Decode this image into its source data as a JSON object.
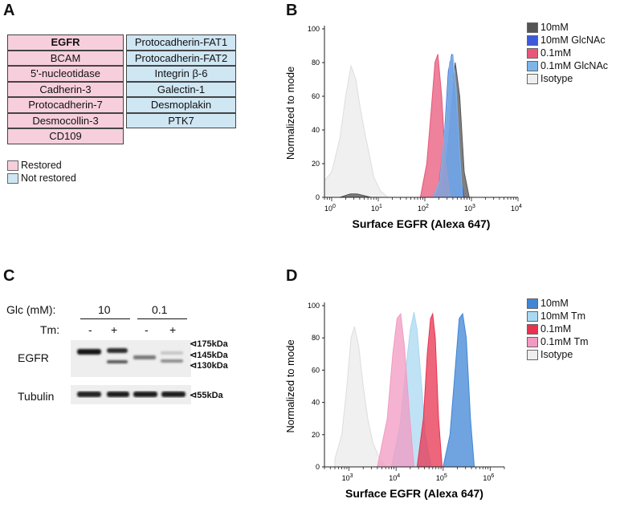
{
  "panels": {
    "a": {
      "letter": "A",
      "restored_list": [
        "EGFR",
        "BCAM",
        "5'-nucleotidase",
        "Cadherin-3",
        "Protocadherin-7",
        "Desmocollin-3",
        "CD109"
      ],
      "not_restored_list": [
        "Protocadherin-FAT1",
        "Protocadherin-FAT2",
        "Integrin β-6",
        "Galectin-1",
        "Desmoplakin",
        "PTK7"
      ],
      "legend": {
        "restored": "Restored",
        "not_restored": "Not restored"
      },
      "colors": {
        "restored": "#f7cfdc",
        "not_restored": "#cfe6f3"
      }
    },
    "b": {
      "letter": "B"
    },
    "c": {
      "letter": "C",
      "glc_label": "Glc (mM):",
      "tm_label": "Tm:",
      "glc_values": [
        "10",
        "0.1"
      ],
      "tm_values": [
        "-",
        "+",
        "-",
        "+"
      ],
      "rows": [
        "EGFR",
        "Tubulin"
      ],
      "markers": [
        "175kDa",
        "145kDa",
        "130kDa",
        "55kDa"
      ]
    },
    "d": {
      "letter": "D"
    }
  },
  "chart_data": [
    {
      "type": "area",
      "panel": "B",
      "xlabel": "Surface EGFR (Alexa 647)",
      "ylabel": "Normalized to mode",
      "xscale": "log",
      "xlim": [
        0.7,
        10000
      ],
      "ylim": [
        0,
        100
      ],
      "x_ticks": [
        "10^0",
        "10^1",
        "10^2",
        "10^3",
        "10^4"
      ],
      "y_ticks": [
        0,
        20,
        40,
        60,
        80,
        100
      ],
      "legend_position": "top-right",
      "series": [
        {
          "name": "10mM",
          "color": "#555555",
          "x": [
            1.5,
            2.5,
            3.5,
            5,
            7,
            150,
            220,
            300,
            380,
            450,
            560,
            700,
            900
          ],
          "y": [
            0,
            2,
            2,
            1,
            0,
            0,
            5,
            25,
            55,
            80,
            60,
            15,
            0
          ]
        },
        {
          "name": "10mM GlcNAc",
          "color": "#3b5bdb",
          "x": [
            150,
            200,
            260,
            320,
            380,
            430,
            500,
            600,
            700
          ],
          "y": [
            0,
            8,
            35,
            75,
            85,
            65,
            45,
            10,
            0
          ]
        },
        {
          "name": "0.1mM",
          "color": "#e8577a",
          "x": [
            80,
            110,
            140,
            165,
            190,
            230,
            280,
            350
          ],
          "y": [
            0,
            20,
            55,
            80,
            85,
            60,
            20,
            0
          ]
        },
        {
          "name": "0.1mM GlcNAc",
          "color": "#7db5e8",
          "x": [
            150,
            210,
            280,
            340,
            400,
            470,
            550,
            650
          ],
          "y": [
            0,
            10,
            45,
            80,
            85,
            65,
            30,
            0
          ]
        },
        {
          "name": "Isotype",
          "color": "#eeeeee",
          "x": [
            0.7,
            1,
            1.5,
            2,
            2.6,
            3.3,
            4,
            5,
            6.5,
            8,
            11,
            16
          ],
          "y": [
            10,
            15,
            35,
            60,
            78,
            70,
            55,
            40,
            25,
            12,
            4,
            0
          ]
        }
      ]
    },
    {
      "type": "area",
      "panel": "D",
      "xlabel": "Surface EGFR (Alexa 647)",
      "ylabel": "Normalized to mode",
      "xscale": "log",
      "xlim": [
        300,
        2000000
      ],
      "ylim": [
        0,
        100
      ],
      "x_ticks": [
        "10^3",
        "10^4",
        "10^5",
        "10^6"
      ],
      "y_ticks": [
        0,
        20,
        40,
        60,
        80,
        100
      ],
      "legend_position": "top-right",
      "series": [
        {
          "name": "10mM",
          "color": "#3f86d6",
          "x": [
            100000,
            140000,
            180000,
            220000,
            260000,
            310000,
            380000,
            460000
          ],
          "y": [
            0,
            20,
            60,
            92,
            95,
            80,
            30,
            0
          ]
        },
        {
          "name": "10mM Tm",
          "color": "#a9d8f2",
          "x": [
            8000,
            12000,
            16000,
            20000,
            24000,
            28000,
            34000,
            42000,
            55000
          ],
          "y": [
            0,
            25,
            60,
            85,
            96,
            85,
            55,
            20,
            0
          ]
        },
        {
          "name": "0.1mM",
          "color": "#e8334f",
          "x": [
            28000,
            38000,
            46000,
            54000,
            60000,
            68000,
            80000,
            95000
          ],
          "y": [
            0,
            30,
            70,
            92,
            95,
            80,
            30,
            0
          ]
        },
        {
          "name": "0.1mM Tm",
          "color": "#f29ac2",
          "x": [
            4000,
            6500,
            8500,
            10500,
            12500,
            15000,
            19000,
            24000
          ],
          "y": [
            0,
            30,
            70,
            92,
            95,
            75,
            35,
            0
          ]
        },
        {
          "name": "Isotype",
          "color": "#eeeeee",
          "x": [
            500,
            700,
            900,
            1100,
            1300,
            1600,
            2000,
            2500,
            3200,
            4500,
            6000
          ],
          "y": [
            5,
            20,
            50,
            80,
            87,
            75,
            50,
            30,
            15,
            5,
            0
          ]
        }
      ]
    }
  ]
}
